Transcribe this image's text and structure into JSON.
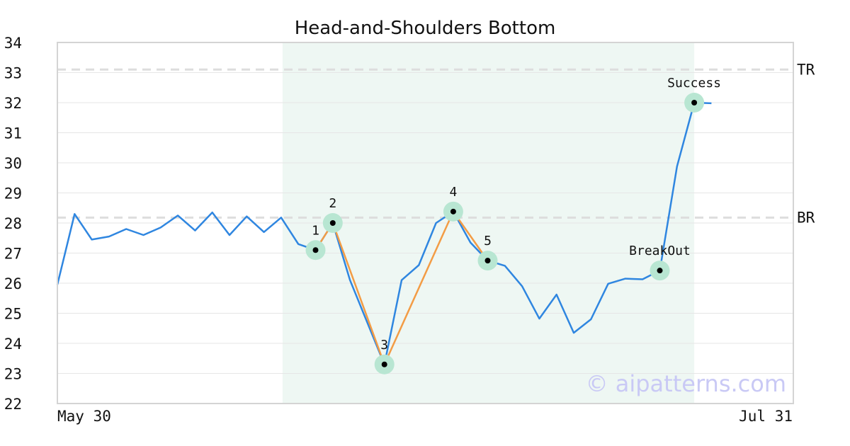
{
  "chart_data": {
    "type": "line",
    "title": "Head-and-Shoulders Bottom",
    "x_start_label": "May 30",
    "x_end_label": "Jul 31",
    "ylim": [
      22,
      34
    ],
    "yticks": [
      "22",
      "23",
      "24",
      "25",
      "26",
      "27",
      "28",
      "29",
      "30",
      "31",
      "32",
      "33",
      "34"
    ],
    "grid": true,
    "series": [
      {
        "values": [
          25.95,
          28.3,
          27.45,
          27.55,
          27.8,
          27.6,
          27.85,
          28.25,
          27.75,
          28.35,
          27.6,
          28.22,
          27.7,
          28.18,
          27.3,
          27.1,
          28.0,
          26.1,
          24.7,
          23.3,
          26.1,
          26.6,
          28.0,
          28.38,
          27.35,
          26.75,
          26.58,
          25.9,
          24.82,
          25.62,
          24.35,
          24.8,
          25.98,
          26.15,
          26.13,
          26.42,
          29.88,
          32.0,
          31.98
        ]
      }
    ],
    "pattern_segments": [
      {
        "from": 15,
        "to": 16
      },
      {
        "from": 16,
        "to": 19
      },
      {
        "from": 19,
        "to": 23
      },
      {
        "from": 23,
        "to": 25
      }
    ],
    "highlight_range": {
      "from": 13,
      "to": 37
    },
    "reference_lines": [
      {
        "label": "TR",
        "value": 33.1
      },
      {
        "label": "BR",
        "value": 28.18
      }
    ],
    "points": [
      {
        "label": "1",
        "index": 15,
        "value": 27.1
      },
      {
        "label": "2",
        "index": 16,
        "value": 28.0
      },
      {
        "label": "3",
        "index": 19,
        "value": 23.3
      },
      {
        "label": "4",
        "index": 23,
        "value": 28.38
      },
      {
        "label": "5",
        "index": 25,
        "value": 26.75
      },
      {
        "label": "BreakOut",
        "index": 35,
        "value": 26.42
      },
      {
        "label": "Success",
        "index": 37,
        "value": 32.0
      }
    ],
    "watermark": "© aipatterns.com",
    "colors": {
      "line": "#2f86e0",
      "pattern": "#f39c45",
      "highlight": "#eef7f3",
      "marker_ring": "#b8e6d2",
      "marker_dot": "#000000",
      "grid": "#e6e6e6",
      "refline": "#dddddd",
      "frame": "#d4d4d4"
    }
  }
}
